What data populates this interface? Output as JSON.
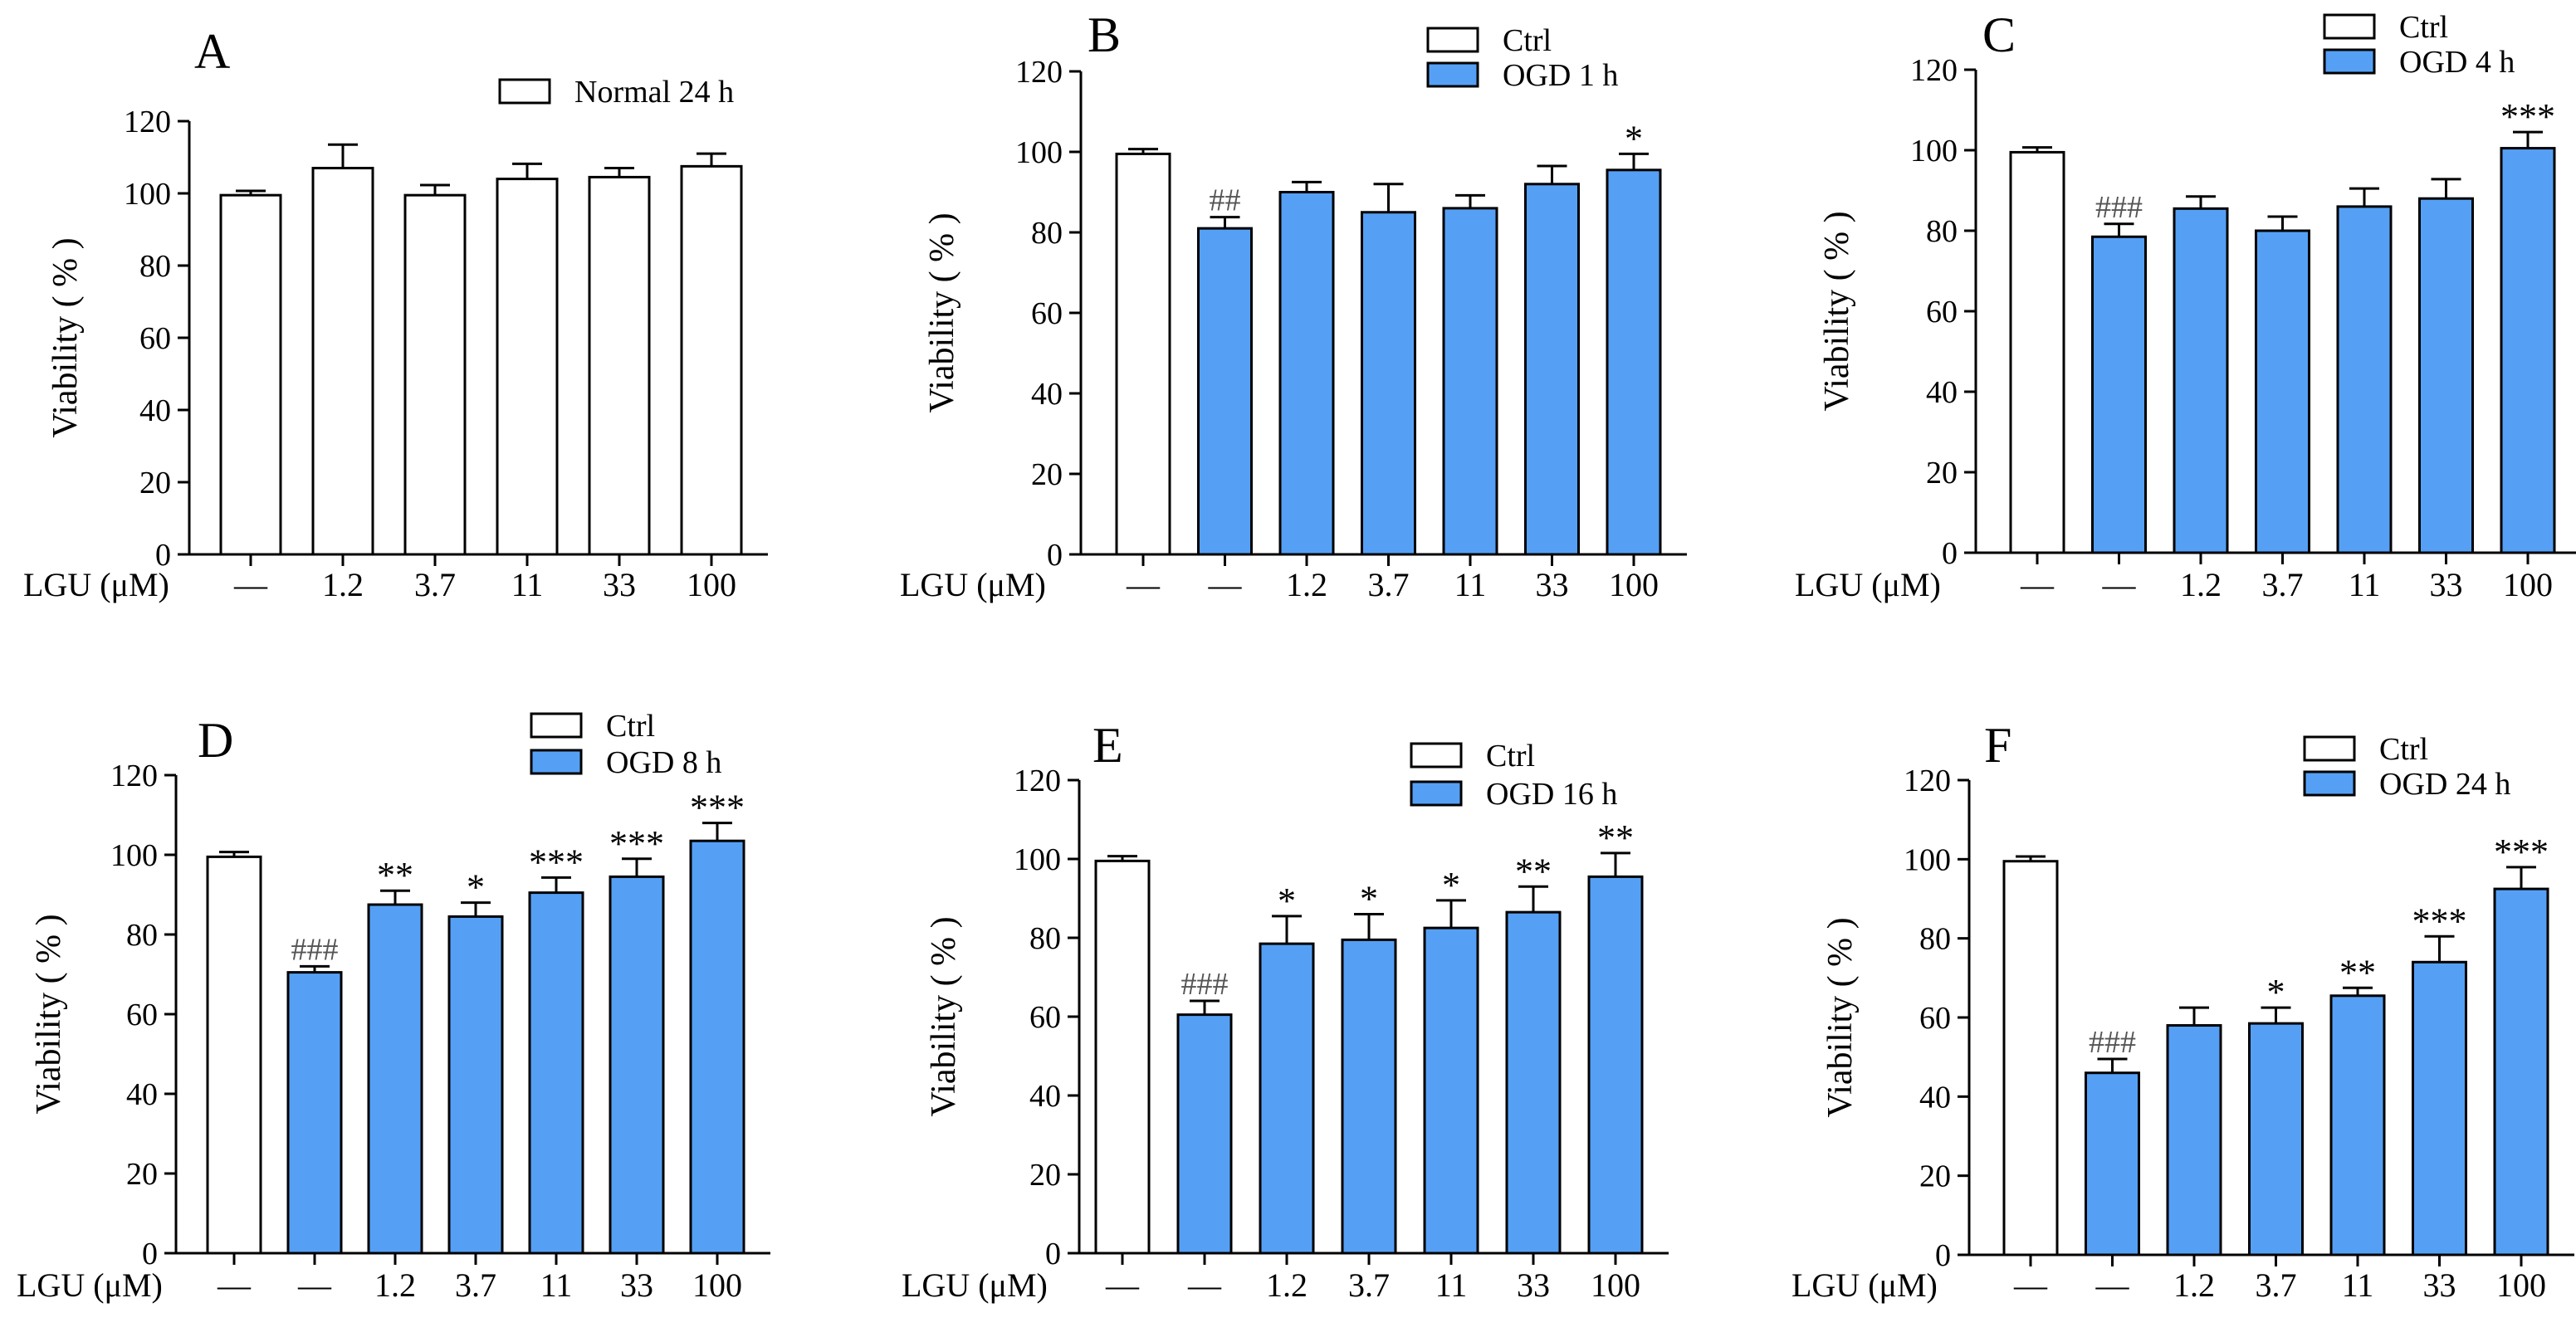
{
  "colors": {
    "ctrl": "#ffffff",
    "treat": "#55A0F5",
    "stroke": "#000000"
  },
  "chart_data": [
    {
      "type": "bar",
      "panel": "A",
      "xlabel": "LGU (μM)",
      "ylabel": "Viability ( % )",
      "ylim": [
        0,
        120
      ],
      "yticks": [
        "0",
        "20",
        "40",
        "60",
        "80",
        "100",
        "120"
      ],
      "legend": [
        {
          "label": "Normal 24 h",
          "group": "ctrl"
        }
      ],
      "categories": [
        "—",
        "1.2",
        "3.7",
        "11",
        "33",
        "100"
      ],
      "values": [
        99.5,
        107,
        99.5,
        104,
        104.5,
        107.5
      ],
      "errors": [
        1.2,
        6.5,
        2.8,
        4.2,
        2.5,
        3.5
      ],
      "groups": [
        "ctrl",
        "ctrl",
        "ctrl",
        "ctrl",
        "ctrl",
        "ctrl"
      ],
      "annotations": [
        "",
        "",
        "",
        "",
        "",
        ""
      ]
    },
    {
      "type": "bar",
      "panel": "B",
      "xlabel": "LGU (μM)",
      "ylabel": "Viability ( % )",
      "ylim": [
        0,
        120
      ],
      "yticks": [
        "0",
        "20",
        "40",
        "60",
        "80",
        "100",
        "120"
      ],
      "legend": [
        {
          "label": "Ctrl",
          "group": "ctrl"
        },
        {
          "label": "OGD 1 h",
          "group": "treat"
        }
      ],
      "categories": [
        "—",
        "—",
        "1.2",
        "3.7",
        "11",
        "33",
        "100"
      ],
      "values": [
        99.5,
        81,
        90,
        85,
        86,
        92,
        95.5
      ],
      "errors": [
        1.2,
        2.8,
        2.5,
        7,
        3.2,
        4.5,
        4
      ],
      "groups": [
        "ctrl",
        "treat",
        "treat",
        "treat",
        "treat",
        "treat",
        "treat"
      ],
      "annotations": [
        "",
        "##",
        "",
        "",
        "",
        "",
        "*"
      ]
    },
    {
      "type": "bar",
      "panel": "C",
      "xlabel": "LGU (μM)",
      "ylabel": "Viability ( % )",
      "ylim": [
        0,
        120
      ],
      "yticks": [
        "0",
        "20",
        "40",
        "60",
        "80",
        "100",
        "120"
      ],
      "legend": [
        {
          "label": "Ctrl",
          "group": "ctrl"
        },
        {
          "label": "OGD 4 h",
          "group": "treat"
        }
      ],
      "categories": [
        "—",
        "—",
        "1.2",
        "3.7",
        "11",
        "33",
        "100"
      ],
      "values": [
        99.5,
        78.5,
        85.5,
        80,
        86,
        88,
        100.5
      ],
      "errors": [
        1.2,
        3.2,
        3,
        3.5,
        4.5,
        4.8,
        4
      ],
      "groups": [
        "ctrl",
        "treat",
        "treat",
        "treat",
        "treat",
        "treat",
        "treat"
      ],
      "annotations": [
        "",
        "###",
        "",
        "",
        "",
        "",
        "***"
      ]
    },
    {
      "type": "bar",
      "panel": "D",
      "xlabel": "LGU (μM)",
      "ylabel": "Viability ( % )",
      "ylim": [
        0,
        120
      ],
      "yticks": [
        "0",
        "20",
        "40",
        "60",
        "80",
        "100",
        "120"
      ],
      "legend": [
        {
          "label": "Ctrl",
          "group": "ctrl"
        },
        {
          "label": "OGD 8 h",
          "group": "treat"
        }
      ],
      "categories": [
        "—",
        "—",
        "1.2",
        "3.7",
        "11",
        "33",
        "100"
      ],
      "values": [
        99.5,
        70.5,
        87.5,
        84.5,
        90.5,
        94.5,
        103.5
      ],
      "errors": [
        1.2,
        1.5,
        3.5,
        3.5,
        3.8,
        4.5,
        4.5
      ],
      "groups": [
        "ctrl",
        "treat",
        "treat",
        "treat",
        "treat",
        "treat",
        "treat"
      ],
      "annotations": [
        "",
        "###",
        "**",
        "*",
        "***",
        "***",
        "***"
      ]
    },
    {
      "type": "bar",
      "panel": "E",
      "xlabel": "LGU (μM)",
      "ylabel": "Viability ( % )",
      "ylim": [
        0,
        120
      ],
      "yticks": [
        "0",
        "20",
        "40",
        "60",
        "80",
        "100",
        "120"
      ],
      "legend": [
        {
          "label": "Ctrl",
          "group": "ctrl"
        },
        {
          "label": "OGD 16 h",
          "group": "treat"
        }
      ],
      "categories": [
        "—",
        "—",
        "1.2",
        "3.7",
        "11",
        "33",
        "100"
      ],
      "values": [
        99.5,
        60.5,
        78.5,
        79.5,
        82.5,
        86.5,
        95.5
      ],
      "errors": [
        1.2,
        3.5,
        7,
        6.5,
        7,
        6.5,
        6
      ],
      "groups": [
        "ctrl",
        "treat",
        "treat",
        "treat",
        "treat",
        "treat",
        "treat"
      ],
      "annotations": [
        "",
        "###",
        "*",
        "*",
        "*",
        "**",
        "**"
      ]
    },
    {
      "type": "bar",
      "panel": "F",
      "xlabel": "LGU (μM)",
      "ylabel": "Viability ( % )",
      "ylim": [
        0,
        120
      ],
      "yticks": [
        "0",
        "20",
        "40",
        "60",
        "80",
        "100",
        "120"
      ],
      "legend": [
        {
          "label": "Ctrl",
          "group": "ctrl"
        },
        {
          "label": "OGD 24 h",
          "group": "treat"
        }
      ],
      "categories": [
        "—",
        "—",
        "1.2",
        "3.7",
        "11",
        "33",
        "100"
      ],
      "values": [
        99.5,
        46,
        58,
        58.5,
        65.5,
        74,
        92.5
      ],
      "errors": [
        1.2,
        3.5,
        4.5,
        4,
        2,
        6.5,
        5.5
      ],
      "groups": [
        "ctrl",
        "treat",
        "treat",
        "treat",
        "treat",
        "treat",
        "treat"
      ],
      "annotations": [
        "",
        "###",
        "",
        "*",
        "**",
        "***",
        "***"
      ]
    }
  ]
}
